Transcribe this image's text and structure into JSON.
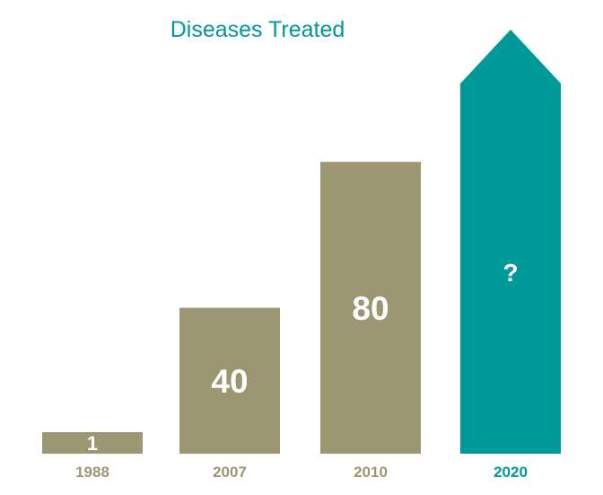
{
  "chart_data": {
    "type": "bar",
    "title": "Diseases Treated",
    "xlabel": "",
    "ylabel": "",
    "categories": [
      "1988",
      "2007",
      "2010",
      "2020"
    ],
    "values": [
      1,
      40,
      80,
      null
    ],
    "data_labels": [
      "1",
      "40",
      "80",
      "?"
    ],
    "last_bar_shape": "arrow-up",
    "ylim": [
      0,
      100
    ],
    "grid": false,
    "legend": "none"
  },
  "colors": {
    "bar": "#9c9672",
    "highlight": "#009999",
    "title": "#009999",
    "tick_label": "#9c9672",
    "tick_label_highlight": "#009999",
    "bar_label": "#ffffff"
  }
}
